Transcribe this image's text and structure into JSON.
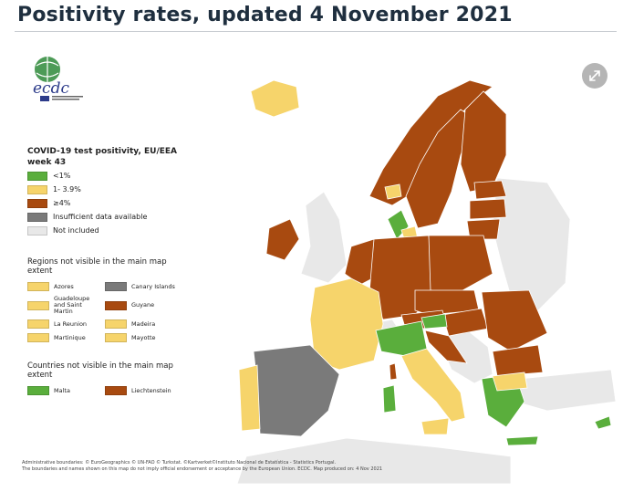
{
  "header": {
    "title": "Positivity rates, updated 4 November 2021"
  },
  "logo": {
    "text": "ecdc"
  },
  "legend": {
    "title": "COVID-19 test positivity, EU/EEA week 43",
    "items": [
      {
        "label": "<1%",
        "color": "#5aae3c"
      },
      {
        "label": "1- 3.9%",
        "color": "#f6d46b"
      },
      {
        "label": "≥4%",
        "color": "#a84a10"
      },
      {
        "label": "Insufficient data available",
        "color": "#7a7a7a"
      },
      {
        "label": "Not included",
        "color": "#e8e8e8"
      }
    ]
  },
  "regions": {
    "title": "Regions not visible in the main map extent",
    "items": [
      {
        "label": "Azores",
        "color": "#f6d46b"
      },
      {
        "label": "Canary Islands",
        "color": "#7a7a7a"
      },
      {
        "label": "Guadeloupe and Saint Martin",
        "color": "#f6d46b"
      },
      {
        "label": "Guyane",
        "color": "#a84a10"
      },
      {
        "label": "La Reunion",
        "color": "#f6d46b"
      },
      {
        "label": "Madeira",
        "color": "#f6d46b"
      },
      {
        "label": "Martinique",
        "color": "#f6d46b"
      },
      {
        "label": "Mayotte",
        "color": "#f6d46b"
      }
    ]
  },
  "countries": {
    "title": "Countries not visible in the main map extent",
    "items": [
      {
        "label": "Malta",
        "color": "#5aae3c"
      },
      {
        "label": "Liechtenstein",
        "color": "#a84a10"
      }
    ]
  },
  "footer": {
    "line1": "Administrative boundaries: © EuroGeographics © UN-FAO © Turkstat. ©Kartverket©Instituto Nacional de Estatística - Statistics Portugal.",
    "line2": "The boundaries and names shown on this map do not imply official endorsement or acceptance by the European Union. ECDC. Map produced on: 4 Nov 2021"
  },
  "colors": {
    "green": "#5aae3c",
    "yellow": "#f6d46b",
    "brown": "#a84a10",
    "grey": "#7a7a7a",
    "light": "#e8e8e8"
  }
}
